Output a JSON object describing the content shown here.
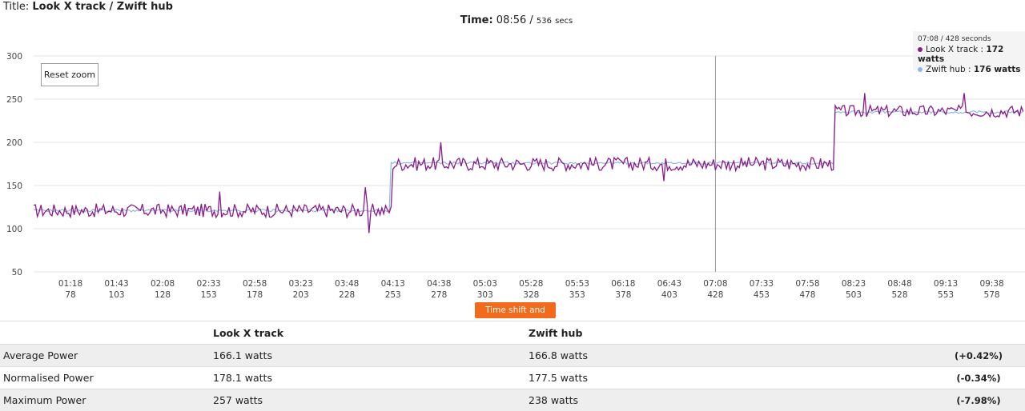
{
  "header": {
    "title_prefix": "Title: ",
    "title": "Look X track / Zwift hub",
    "time_label": "Time:",
    "time_value": "08:56 /",
    "time_secs": "536",
    "time_unit": "secs"
  },
  "controls": {
    "reset_zoom": "Reset zoom",
    "time_shift": "Time shift and crop"
  },
  "tooltip": {
    "header": "07:08 / 428 seconds",
    "rows": [
      {
        "name": "Look X track",
        "sep": " : ",
        "value": "172 watts"
      },
      {
        "name": "Zwift hub",
        "sep": " : ",
        "value": "176 watts"
      }
    ]
  },
  "colors": {
    "look": "#8b1a8b",
    "zwift": "#8ab8e8",
    "button": "#f26a1b"
  },
  "chart_data": {
    "type": "line",
    "xlim": [
      58,
      596
    ],
    "ylim": [
      50,
      300
    ],
    "y_ticks": [
      50,
      100,
      150,
      200,
      250,
      300
    ],
    "x_ticks": [
      {
        "time": "01:18",
        "sec": "78"
      },
      {
        "time": "01:43",
        "sec": "103"
      },
      {
        "time": "02:08",
        "sec": "128"
      },
      {
        "time": "02:33",
        "sec": "153"
      },
      {
        "time": "02:58",
        "sec": "178"
      },
      {
        "time": "03:23",
        "sec": "203"
      },
      {
        "time": "03:48",
        "sec": "228"
      },
      {
        "time": "04:13",
        "sec": "253"
      },
      {
        "time": "04:38",
        "sec": "278"
      },
      {
        "time": "05:03",
        "sec": "303"
      },
      {
        "time": "05:28",
        "sec": "328"
      },
      {
        "time": "05:53",
        "sec": "353"
      },
      {
        "time": "06:18",
        "sec": "378"
      },
      {
        "time": "06:43",
        "sec": "403"
      },
      {
        "time": "07:08",
        "sec": "428"
      },
      {
        "time": "07:33",
        "sec": "453"
      },
      {
        "time": "07:58",
        "sec": "478"
      },
      {
        "time": "08:23",
        "sec": "503"
      },
      {
        "time": "08:48",
        "sec": "528"
      },
      {
        "time": "09:13",
        "sec": "553"
      },
      {
        "time": "09:38",
        "sec": "578"
      }
    ],
    "crosshair_x": 428,
    "series": [
      {
        "name": "Look X track",
        "color": "#8b1a8b",
        "segments": [
          {
            "from": 58,
            "to": 253,
            "level": 121,
            "noise": 8
          },
          {
            "from": 253,
            "to": 493,
            "level": 175,
            "noise": 8
          },
          {
            "from": 493,
            "to": 596,
            "level": 236,
            "noise": 7
          }
        ],
        "peaks": [
          [
            159,
            143
          ],
          [
            238,
            148
          ],
          [
            240,
            95
          ],
          [
            279,
            200
          ],
          [
            400,
            155
          ],
          [
            509,
            257
          ],
          [
            563,
            257
          ]
        ]
      },
      {
        "name": "Zwift hub",
        "color": "#8ab8e8",
        "segments": [
          {
            "from": 58,
            "to": 252,
            "level": 121,
            "noise": 1.5
          },
          {
            "from": 252,
            "to": 493,
            "level": 176,
            "noise": 1.5
          },
          {
            "from": 493,
            "to": 596,
            "level": 235,
            "noise": 1.5
          }
        ],
        "peaks": []
      }
    ]
  },
  "stats": {
    "headers": [
      "",
      "Look X track",
      "Zwift hub",
      ""
    ],
    "rows": [
      {
        "label": "Average Power",
        "a": "166.1 watts",
        "b": "166.8 watts",
        "diff": "(+0.42%)"
      },
      {
        "label": "Normalised Power",
        "a": "178.1 watts",
        "b": "177.5 watts",
        "diff": "(-0.34%)"
      },
      {
        "label": "Maximum Power",
        "a": "257 watts",
        "b": "238 watts",
        "diff": "(-7.98%)"
      }
    ]
  }
}
